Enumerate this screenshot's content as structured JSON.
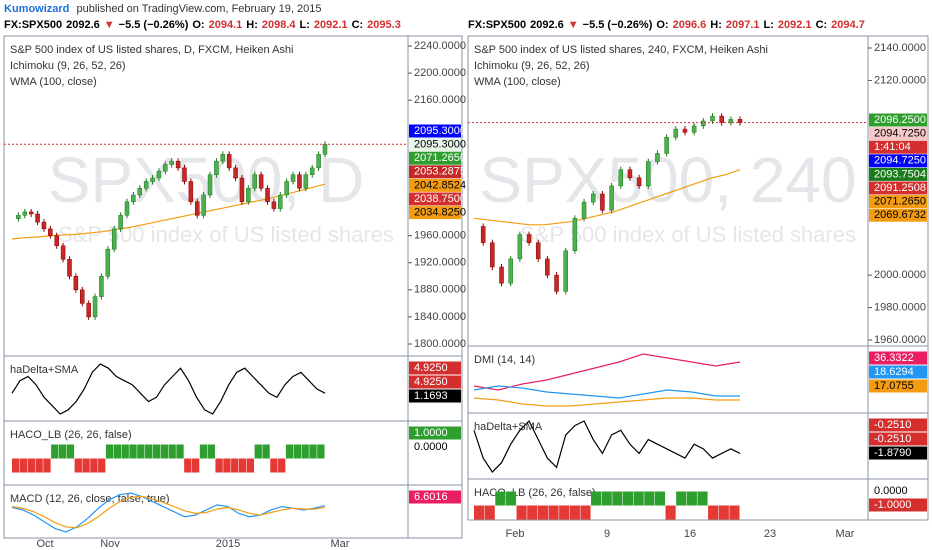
{
  "header": {
    "author": "Kumowizard",
    "published": "published on TradingView.com, February 19, 2015"
  },
  "left": {
    "quote": [
      {
        "text": "FX:SPX500",
        "color": "#000000"
      },
      {
        "text": "2092.6",
        "color": "#000000"
      },
      {
        "text": "▼",
        "color": "#d32f2f"
      },
      {
        "text": "−5.5 (−0.26%)",
        "color": "#000000"
      },
      {
        "text": "O:",
        "color": "#000000"
      },
      {
        "text": "2094.1",
        "color": "#d32f2f"
      },
      {
        "text": "H:",
        "color": "#000000"
      },
      {
        "text": "2098.4",
        "color": "#d32f2f"
      },
      {
        "text": "L:",
        "color": "#000000"
      },
      {
        "text": "2092.1",
        "color": "#d32f2f"
      },
      {
        "text": "C:",
        "color": "#000000"
      },
      {
        "text": "2095.3",
        "color": "#d32f2f"
      }
    ],
    "legend": [
      "S&P 500 index of US listed shares, D, FXCM, Heiken Ashi",
      "Ichimoku (9, 26, 52, 26)",
      "WMA (100, close)"
    ],
    "watermark": "SPX500, D",
    "watermark_sub": "S&P 500 index of US listed shares",
    "price_ticks": [
      {
        "value": 2240,
        "label": "2240.0000"
      },
      {
        "value": 2200,
        "label": "2200.0000"
      },
      {
        "value": 2160,
        "label": "2160.0000"
      },
      {
        "value": 1960,
        "label": "1960.0000"
      },
      {
        "value": 1920,
        "label": "1920.0000"
      },
      {
        "value": 1880,
        "label": "1880.0000"
      },
      {
        "value": 1840,
        "label": "1840.0000"
      },
      {
        "value": 1800,
        "label": "1800.0000"
      }
    ],
    "price_tags": [
      {
        "label": "2095.3000",
        "color": "#0000ff"
      },
      {
        "label": "2095.3000",
        "color": "#e8f5e9"
      },
      {
        "label": "2071.2650",
        "color": "#2e9e2e"
      },
      {
        "label": "2053.2875",
        "color": "#c62828"
      },
      {
        "label": "2042.8524",
        "color": "#f39c12"
      },
      {
        "label": "2038.7500",
        "color": "#d32f2f"
      },
      {
        "label": "2034.8250",
        "color": "#f39c12"
      }
    ],
    "close": [
      1985,
      1990,
      1995,
      1992,
      1980,
      1970,
      1960,
      1945,
      1925,
      1900,
      1880,
      1860,
      1840,
      1870,
      1900,
      1940,
      1970,
      1990,
      2010,
      2020,
      2030,
      2040,
      2045,
      2055,
      2065,
      2070,
      2060,
      2040,
      2010,
      1990,
      2020,
      2050,
      2070,
      2080,
      2060,
      2045,
      2010,
      2030,
      2050,
      2030,
      2010,
      2000,
      2020,
      2040,
      2050,
      2030,
      2050,
      2060,
      2080,
      2095
    ],
    "wma": [
      1955,
      1957,
      1958,
      1960,
      1961,
      1962,
      1964,
      1966,
      1969,
      1972,
      1976,
      1980,
      1984,
      1988,
      1992,
      1996,
      2000,
      2004,
      2008,
      2012,
      2016,
      2021,
      2026,
      2031,
      2036
    ],
    "panels": [
      {
        "title": "haDelta+SMA",
        "kind": "line",
        "series": [
          {
            "color": "#000000",
            "values": [
              -1,
              2,
              3,
              1,
              -2,
              -4,
              -6,
              -5,
              -3,
              0,
              4,
              6,
              5,
              3,
              2,
              1,
              -1,
              -3,
              -2,
              1,
              3,
              5,
              2,
              -2,
              -5,
              -6,
              -3,
              1,
              4,
              5,
              3,
              1,
              -1,
              -2,
              1,
              3,
              4,
              2,
              0,
              -1
            ]
          }
        ],
        "tags": [
          {
            "label": "4.9250",
            "color": "#d32f2f"
          },
          {
            "label": "4.9250",
            "color": "#d32f2f"
          },
          {
            "label": "1.1693",
            "color": "#000000"
          }
        ]
      },
      {
        "title": "HACO_LB (26, 26, false)",
        "kind": "signal",
        "signals": [
          -1,
          -1,
          -1,
          -1,
          -1,
          1,
          1,
          1,
          -1,
          -1,
          -1,
          -1,
          1,
          1,
          1,
          1,
          1,
          1,
          1,
          1,
          1,
          1,
          -1,
          -1,
          1,
          1,
          -1,
          -1,
          -1,
          -1,
          -1,
          1,
          1,
          -1,
          -1,
          1,
          1,
          1,
          1,
          1
        ],
        "tags": [
          {
            "label": "1.0000",
            "color": "#2e9e2e"
          },
          {
            "label": "0.0000",
            "color": "#ffffff"
          }
        ]
      },
      {
        "title": "MACD (12, 26, close, false, true)",
        "kind": "line",
        "series": [
          {
            "color": "#2196f3",
            "values": [
              5,
              2,
              -4,
              -12,
              -20,
              -24,
              -18,
              -8,
              4,
              14,
              20,
              22,
              18,
              12,
              6,
              0,
              -6,
              -4,
              2,
              8,
              6,
              -2,
              -6,
              -4,
              2,
              6,
              4,
              2,
              4,
              7
            ]
          },
          {
            "color": "#f39c12",
            "values": [
              6,
              4,
              0,
              -6,
              -13,
              -18,
              -19,
              -14,
              -6,
              4,
              12,
              17,
              18,
              15,
              11,
              6,
              1,
              -2,
              -1,
              3,
              5,
              2,
              -2,
              -4,
              -1,
              2,
              4,
              3,
              3,
              5
            ]
          }
        ],
        "tags": [
          {
            "label": "6.6016",
            "color": "#e91e63"
          }
        ]
      }
    ],
    "time_labels": [
      "Oct",
      "Nov",
      "2015",
      "Mar"
    ]
  },
  "right": {
    "quote": [
      {
        "text": "FX:SPX500",
        "color": "#000000"
      },
      {
        "text": "2092.6",
        "color": "#000000"
      },
      {
        "text": "▼",
        "color": "#d32f2f"
      },
      {
        "text": "−5.5 (−0.26%)",
        "color": "#000000"
      },
      {
        "text": "O:",
        "color": "#000000"
      },
      {
        "text": "2096.6",
        "color": "#d32f2f"
      },
      {
        "text": "H:",
        "color": "#000000"
      },
      {
        "text": "2097.1",
        "color": "#d32f2f"
      },
      {
        "text": "L:",
        "color": "#000000"
      },
      {
        "text": "2092.1",
        "color": "#d32f2f"
      },
      {
        "text": "C:",
        "color": "#000000"
      },
      {
        "text": "2094.7",
        "color": "#d32f2f"
      }
    ],
    "legend": [
      "S&P 500 index of US listed shares, 240, FXCM, Heiken Ashi",
      "Ichimoku (9, 26, 52, 26)",
      "WMA (100, close)"
    ],
    "watermark": "SPX500, 240",
    "watermark_sub": "S&P 500 index of US listed shares",
    "price_ticks": [
      {
        "value": 2140,
        "label": "2140.0000"
      },
      {
        "value": 2120,
        "label": "2120.0000"
      },
      {
        "value": 2000,
        "label": "2000.0000"
      },
      {
        "value": 1980,
        "label": "1980.0000"
      },
      {
        "value": 1960,
        "label": "1960.0000"
      }
    ],
    "price_tags": [
      {
        "label": "2096.2500",
        "color": "#2e9e2e"
      },
      {
        "label": "2094.7250",
        "color": "#f8c8c8"
      },
      {
        "label": "1:41:04",
        "color": "#d32f2f"
      },
      {
        "label": "2094.7250",
        "color": "#0000ff"
      },
      {
        "label": "2093.7504",
        "color": "#1b7a1b"
      },
      {
        "label": "2091.2508",
        "color": "#d32f2f"
      },
      {
        "label": "2071.2650",
        "color": "#f39c12"
      },
      {
        "label": "2069.6732",
        "color": "#f39c12"
      }
    ],
    "close": [
      2030,
      2020,
      2005,
      1995,
      2010,
      2025,
      2020,
      2010,
      2000,
      1990,
      2015,
      2035,
      2045,
      2050,
      2040,
      2055,
      2065,
      2060,
      2055,
      2070,
      2075,
      2085,
      2090,
      2088,
      2092,
      2095,
      2098,
      2094,
      2096,
      2094
    ],
    "wma": [
      2035,
      2034,
      2033,
      2032,
      2031,
      2031,
      2032,
      2033,
      2035,
      2037,
      2039,
      2042,
      2045,
      2048,
      2051,
      2054,
      2057,
      2060,
      2062,
      2065
    ],
    "panels": [
      {
        "title": "DMI (14, 14)",
        "kind": "line",
        "series": [
          {
            "color": "#e91e63",
            "values": [
              24,
              22,
              25,
              27,
              30,
              33,
              36,
              40,
              38,
              36,
              34,
              36
            ]
          },
          {
            "color": "#2196f3",
            "values": [
              22,
              24,
              23,
              21,
              20,
              19,
              18,
              20,
              22,
              21,
              19,
              19
            ]
          },
          {
            "color": "#f39c12",
            "values": [
              18,
              17,
              15,
              14,
              14,
              15,
              16,
              17,
              18,
              18,
              17,
              17
            ]
          }
        ],
        "tags": [
          {
            "label": "36.3322",
            "color": "#e91e63"
          },
          {
            "label": "18.6294",
            "color": "#2196f3"
          },
          {
            "label": "17.0755",
            "color": "#f39c12"
          }
        ]
      },
      {
        "title": "haDelta+SMA",
        "kind": "line",
        "series": [
          {
            "color": "#000000",
            "values": [
              4,
              -2,
              -5,
              -3,
              1,
              4,
              6,
              2,
              -2,
              -4,
              3,
              5,
              6,
              2,
              -1,
              3,
              4,
              1,
              -1,
              2,
              1,
              0,
              -1,
              -2,
              1,
              0,
              -2,
              -1,
              0,
              -1
            ]
          }
        ],
        "tags": [
          {
            "label": "-0.2510",
            "color": "#d32f2f"
          },
          {
            "label": "-0.2510",
            "color": "#d32f2f"
          },
          {
            "label": "-1.8790",
            "color": "#000000"
          }
        ]
      },
      {
        "title": "HACO_LB (26, 26, false)",
        "kind": "signal",
        "signals": [
          -1,
          -1,
          1,
          1,
          -1,
          -1,
          -1,
          -1,
          -1,
          -1,
          -1,
          1,
          1,
          1,
          1,
          1,
          1,
          1,
          -1,
          1,
          1,
          1,
          -1,
          -1,
          -1
        ],
        "tags": [
          {
            "label": "0.0000",
            "color": "#ffffff"
          },
          {
            "label": "-1.0000",
            "color": "#d32f2f"
          }
        ]
      }
    ],
    "time_labels": [
      "Feb",
      "9",
      "16",
      "23",
      "Mar"
    ]
  }
}
